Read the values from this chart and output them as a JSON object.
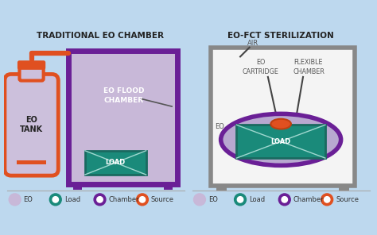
{
  "bg_color": "#bdd8ee",
  "title_left": "TRADITIONAL EO CHAMBER",
  "title_right": "EO-FCT STERILIZATION",
  "colors": {
    "chamber_border": "#6a1f96",
    "chamber_fill": "#c8b8d8",
    "load_fill": "#1a8a7a",
    "load_border": "#1a6a60",
    "load_line": "#a0d8d0",
    "source_fill": "#e05020",
    "source_border": "#c04010",
    "tank_fill": "#ccc0dc",
    "gray_border": "#888888",
    "gray_fill": "#f4f4f4",
    "eo_ellipse_fill": "#b8a8d0",
    "eo_ellipse_border": "#6a1f96",
    "white": "#ffffff",
    "dark_text": "#222222",
    "mid_text": "#555555",
    "pointer_line": "#444444"
  },
  "legend_items": [
    "EO",
    "Load",
    "Chamber",
    "Source"
  ],
  "legend_colors": [
    "#c8b8d8",
    "#1a8a7a",
    "#6a1f96",
    "#e05020"
  ]
}
